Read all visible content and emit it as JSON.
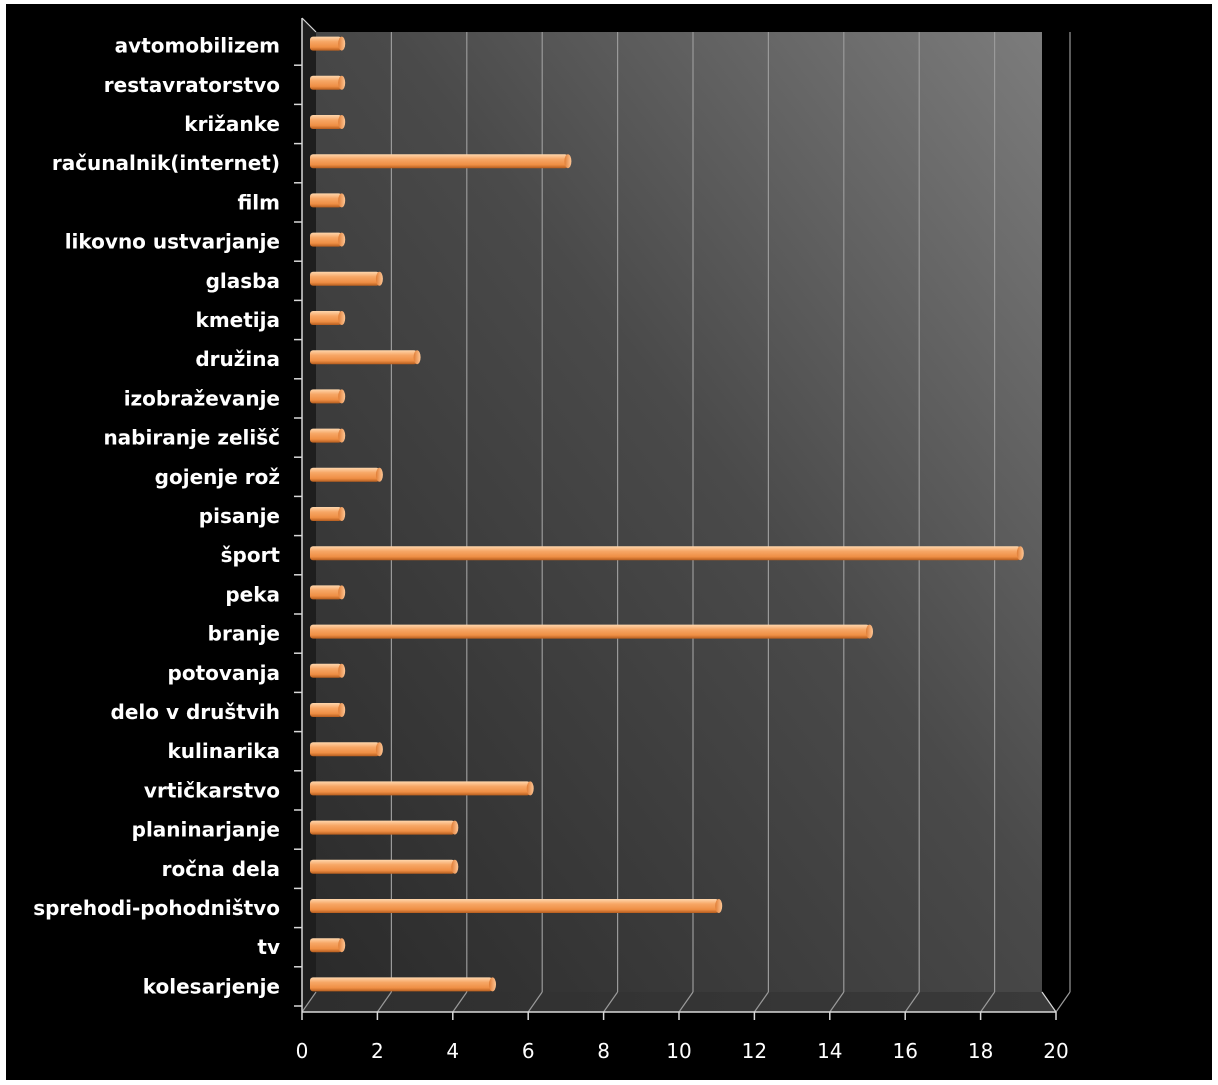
{
  "chart_data": {
    "type": "bar",
    "orientation": "horizontal",
    "categories": [
      "avtomobilizem",
      "restavratorstvo",
      "križanke",
      "računalnik(internet)",
      "film",
      "likovno ustvarjanje",
      "glasba",
      "kmetija",
      "družina",
      "izobraževanje",
      "nabiranje zelišč",
      "gojenje rož",
      "pisanje",
      "šport",
      "peka",
      "branje",
      "potovanja",
      "delo v društvih",
      "kulinarika",
      "vrtičkarstvo",
      "planinarjanje",
      "ročna dela",
      "sprehodi-pohodništvo",
      "tv",
      "kolesarjenje"
    ],
    "values": [
      1,
      1,
      1,
      7,
      1,
      1,
      2,
      1,
      3,
      1,
      1,
      2,
      1,
      19,
      1,
      15,
      1,
      1,
      2,
      6,
      4,
      4,
      11,
      1,
      5
    ],
    "xlim": [
      0,
      20
    ],
    "xticks": [
      "0",
      "2",
      "4",
      "6",
      "8",
      "10",
      "12",
      "14",
      "16",
      "18",
      "20"
    ],
    "grid": "vertical",
    "colors": {
      "background": "#000000",
      "bar": "#f4a05a",
      "bar_highlight": "#ffd3a6",
      "bar_shadow": "#b85e1f",
      "wall_dark": "#333333",
      "wall_light": "#787878",
      "grid": "#9a9a9a",
      "axis": "#d8d8d8",
      "text": "#ffffff"
    }
  }
}
